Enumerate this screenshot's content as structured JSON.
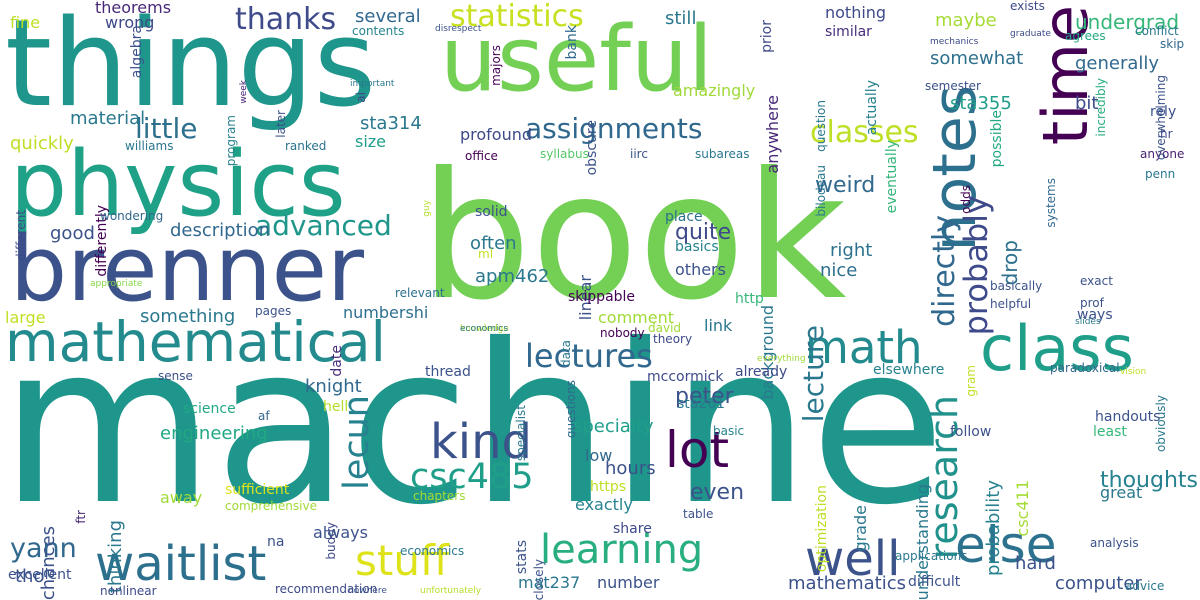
{
  "words": [
    {
      "text": "machine",
      "color": "#1f968b"
    },
    {
      "text": "book",
      "color": "#73d055"
    },
    {
      "text": "things",
      "color": "#1f968b"
    },
    {
      "text": "useful",
      "color": "#73d055"
    },
    {
      "text": "physics",
      "color": "#1fa188"
    },
    {
      "text": "brenner",
      "color": "#3b528b"
    },
    {
      "text": "mathematical",
      "color": "#238a8d"
    },
    {
      "text": "class",
      "color": "#1f9e89"
    },
    {
      "text": "time",
      "color": "#440154"
    },
    {
      "text": "notes",
      "color": "#2d708e"
    },
    {
      "text": "math",
      "color": "#238a8d"
    },
    {
      "text": "lot",
      "color": "#440154"
    },
    {
      "text": "kind",
      "color": "#3b528b"
    },
    {
      "text": "well",
      "color": "#3b528b"
    },
    {
      "text": "else",
      "color": "#2c728e"
    },
    {
      "text": "waitlist",
      "color": "#2d708e"
    },
    {
      "text": "stuff",
      "color": "#dde318"
    },
    {
      "text": "learning",
      "color": "#29af7f"
    },
    {
      "text": "csc485",
      "color": "#1f9e89"
    },
    {
      "text": "lecun",
      "color": "#26828e"
    },
    {
      "text": "research",
      "color": "#21918c"
    },
    {
      "text": "lecture",
      "color": "#2a788e"
    },
    {
      "text": "directly",
      "color": "#31688e"
    },
    {
      "text": "probably",
      "color": "#3e4a89"
    },
    {
      "text": "assignments",
      "color": "#31688e"
    },
    {
      "text": "statistics",
      "color": "#c8e020"
    },
    {
      "text": "classes",
      "color": "#bddf26"
    },
    {
      "text": "lectures",
      "color": "#31688e"
    },
    {
      "text": "advanced",
      "color": "#1f968b"
    },
    {
      "text": "thanks",
      "color": "#3e4a89"
    },
    {
      "text": "little",
      "color": "#2d708e"
    },
    {
      "text": "yann",
      "color": "#31688e"
    },
    {
      "text": "several",
      "color": "#31688e"
    },
    {
      "text": "still",
      "color": "#2a788e"
    },
    {
      "text": "nothing",
      "color": "#3e4a89"
    },
    {
      "text": "undergrad",
      "color": "#35b779"
    },
    {
      "text": "maybe",
      "color": "#a5db36"
    },
    {
      "text": "somewhat",
      "color": "#2d708e"
    },
    {
      "text": "sta355",
      "color": "#1f9e89"
    },
    {
      "text": "generally",
      "color": "#31688e"
    },
    {
      "text": "bit",
      "color": "#3e4a89"
    },
    {
      "text": "similar",
      "color": "#472d7b"
    },
    {
      "text": "exists",
      "color": "#3e4a89"
    },
    {
      "text": "agrees",
      "color": "#22a884"
    },
    {
      "text": "conflict",
      "color": "#2a788e"
    },
    {
      "text": "skip",
      "color": "#31688e"
    },
    {
      "text": "mechanics",
      "color": "#3e4a89"
    },
    {
      "text": "graduate",
      "color": "#3e4a89"
    },
    {
      "text": "rely",
      "color": "#3b528b"
    },
    {
      "text": "hr",
      "color": "#3e4a89"
    },
    {
      "text": "anyone",
      "color": "#482173"
    },
    {
      "text": "penn",
      "color": "#2a788e"
    },
    {
      "text": "semester",
      "color": "#3b528b"
    },
    {
      "text": "question",
      "color": "#2a788e"
    },
    {
      "text": "actually",
      "color": "#26828e"
    },
    {
      "text": "eventually",
      "color": "#35b779"
    },
    {
      "text": "possible",
      "color": "#22a884"
    },
    {
      "text": "bilodeau",
      "color": "#2a788e"
    },
    {
      "text": "incredibly",
      "color": "#27ad81"
    },
    {
      "text": "overwhelming",
      "color": "#3b528b"
    },
    {
      "text": "obviously",
      "color": "#2a788e"
    },
    {
      "text": "theorems",
      "color": "#482878"
    },
    {
      "text": "fine",
      "color": "#bddf26"
    },
    {
      "text": "wrong",
      "color": "#3e4a89"
    },
    {
      "text": "contents",
      "color": "#26828e"
    },
    {
      "text": "date",
      "color": "#472d7b"
    },
    {
      "text": "algebra",
      "color": "#3b528b"
    },
    {
      "text": "disrespect",
      "color": "#3b528b"
    },
    {
      "text": "majors",
      "color": "#440154"
    },
    {
      "text": "bank",
      "color": "#31688e"
    },
    {
      "text": "prior",
      "color": "#3e4a89"
    },
    {
      "text": "amazingly",
      "color": "#a0da39"
    },
    {
      "text": "obscure",
      "color": "#3b528b"
    },
    {
      "text": "anywhere",
      "color": "#482878"
    },
    {
      "text": "program",
      "color": "#26828e"
    },
    {
      "text": "week",
      "color": "#482475"
    },
    {
      "text": "later",
      "color": "#3b528b"
    },
    {
      "text": "important",
      "color": "#2a788e"
    },
    {
      "text": "ai",
      "color": "#404688"
    },
    {
      "text": "material",
      "color": "#2a788e"
    },
    {
      "text": "quickly",
      "color": "#bddf26"
    },
    {
      "text": "sta314",
      "color": "#2a788e"
    },
    {
      "text": "size",
      "color": "#1f9e89"
    },
    {
      "text": "ranked",
      "color": "#2c728e"
    },
    {
      "text": "williams",
      "color": "#2a788e"
    },
    {
      "text": "differently",
      "color": "#440154"
    },
    {
      "text": "profound",
      "color": "#3e4a89"
    },
    {
      "text": "office",
      "color": "#440154"
    },
    {
      "text": "syllabus",
      "color": "#56c667"
    },
    {
      "text": "iirc",
      "color": "#3b528b"
    },
    {
      "text": "subareas",
      "color": "#2a788e"
    },
    {
      "text": "linear",
      "color": "#3b528b"
    },
    {
      "text": "background",
      "color": "#2a788e"
    },
    {
      "text": "description",
      "color": "#31688e"
    },
    {
      "text": "good",
      "color": "#3b528b"
    },
    {
      "text": "often",
      "color": "#2a788e"
    },
    {
      "text": "solid",
      "color": "#3b528b"
    },
    {
      "text": "quite",
      "color": "#3e4a89"
    },
    {
      "text": "place",
      "color": "#2c728e"
    },
    {
      "text": "basics",
      "color": "#26828e"
    },
    {
      "text": "apm462",
      "color": "#2a788e"
    },
    {
      "text": "ml",
      "color": "#c2df23"
    },
    {
      "text": "others",
      "color": "#3b528b"
    },
    {
      "text": "weird",
      "color": "#31688e"
    },
    {
      "text": "right",
      "color": "#2c728e"
    },
    {
      "text": "nice",
      "color": "#2d708e"
    },
    {
      "text": "drop",
      "color": "#2d708e"
    },
    {
      "text": "systems",
      "color": "#31688e"
    },
    {
      "text": "basically",
      "color": "#3b528b"
    },
    {
      "text": "odds",
      "color": "#440154"
    },
    {
      "text": "different",
      "color": "#3e4a89"
    },
    {
      "text": "wondering",
      "color": "#31688e"
    },
    {
      "text": "guy",
      "color": "#b5de2b"
    },
    {
      "text": "appropriate",
      "color": "#86d549"
    },
    {
      "text": "large",
      "color": "#c2df23"
    },
    {
      "text": "something",
      "color": "#2a788e"
    },
    {
      "text": "relevant",
      "color": "#2d708e"
    },
    {
      "text": "pages",
      "color": "#3b528b"
    },
    {
      "text": "numbershi",
      "color": "#2d708e"
    },
    {
      "text": "knowledge",
      "color": "#b5de2b"
    },
    {
      "text": "economics",
      "color": "#2a788e"
    },
    {
      "text": "data",
      "color": "#2a788e"
    },
    {
      "text": "specialist",
      "color": "#2a788e"
    },
    {
      "text": "questions",
      "color": "#31688e"
    },
    {
      "text": "skippable",
      "color": "#440154"
    },
    {
      "text": "nobody",
      "color": "#440154"
    },
    {
      "text": "theory",
      "color": "#3e4a89"
    },
    {
      "text": "david",
      "color": "#a0da39"
    },
    {
      "text": "comment",
      "color": "#a0da39"
    },
    {
      "text": "link",
      "color": "#2a788e"
    },
    {
      "text": "http",
      "color": "#35b779"
    },
    {
      "text": "helpful",
      "color": "#3b528b"
    },
    {
      "text": "exact",
      "color": "#3b528b"
    },
    {
      "text": "prof",
      "color": "#3b528b"
    },
    {
      "text": "ways",
      "color": "#3b528b"
    },
    {
      "text": "slides",
      "color": "#2a788e"
    },
    {
      "text": "vision",
      "color": "#bddf26"
    },
    {
      "text": "paradoxical",
      "color": "#31688e"
    },
    {
      "text": "sense",
      "color": "#3b528b"
    },
    {
      "text": "knight",
      "color": "#31688e"
    },
    {
      "text": "thread",
      "color": "#3b528b"
    },
    {
      "text": "mccormick",
      "color": "#3e4a89"
    },
    {
      "text": "already",
      "color": "#3e4a89"
    },
    {
      "text": "elsewhere",
      "color": "#26828e"
    },
    {
      "text": "everything",
      "color": "#a0da39"
    },
    {
      "text": "gram",
      "color": "#c2df23"
    },
    {
      "text": "grade",
      "color": "#2a788e"
    },
    {
      "text": "optimization",
      "color": "#bddf26"
    },
    {
      "text": "probability",
      "color": "#26828e"
    },
    {
      "text": "csc411",
      "color": "#a5db36"
    },
    {
      "text": "understanding",
      "color": "#2a788e"
    },
    {
      "text": "chances",
      "color": "#3b528b"
    },
    {
      "text": "thinking",
      "color": "#2a788e"
    },
    {
      "text": "engineering",
      "color": "#22a884"
    },
    {
      "text": "science",
      "color": "#22a884"
    },
    {
      "text": "af",
      "color": "#31688e"
    },
    {
      "text": "hell",
      "color": "#b5de2b"
    },
    {
      "text": "buddy",
      "color": "#3e4a89"
    },
    {
      "text": "comprehensive",
      "color": "#a0da39"
    },
    {
      "text": "ftr",
      "color": "#482878"
    },
    {
      "text": "excellent",
      "color": "#3b528b"
    },
    {
      "text": "nonlinear",
      "color": "#3e4a89"
    },
    {
      "text": "recommendation",
      "color": "#3e4a89"
    },
    {
      "text": "nowhere",
      "color": "#3b528b"
    },
    {
      "text": "unfortunately",
      "color": "#b5de2b"
    },
    {
      "text": "economics",
      "color": "#2a788e"
    },
    {
      "text": "stats",
      "color": "#3b528b"
    },
    {
      "text": "closely",
      "color": "#3b528b"
    },
    {
      "text": "specialty",
      "color": "#1f9e89"
    },
    {
      "text": "low",
      "color": "#31688e"
    },
    {
      "text": "hours",
      "color": "#3b528b"
    },
    {
      "text": "even",
      "color": "#3b528b"
    },
    {
      "text": "https",
      "color": "#bddf26"
    },
    {
      "text": "exactly",
      "color": "#26828e"
    },
    {
      "text": "share",
      "color": "#3e4a89"
    },
    {
      "text": "table",
      "color": "#3b528b"
    },
    {
      "text": "peter",
      "color": "#3b528b"
    },
    {
      "text": "sta261",
      "color": "#2a788e"
    },
    {
      "text": "basic",
      "color": "#26828e"
    },
    {
      "text": "chapters",
      "color": "#a5db36"
    },
    {
      "text": "sufficient",
      "color": "#dde318"
    },
    {
      "text": "away",
      "color": "#a0da39"
    },
    {
      "text": "na",
      "color": "#3b528b"
    },
    {
      "text": "always",
      "color": "#3b528b"
    },
    {
      "text": "mat237",
      "color": "#2a788e"
    },
    {
      "text": "number",
      "color": "#3b528b"
    },
    {
      "text": "mathematics",
      "color": "#3b528b"
    },
    {
      "text": "difficult",
      "color": "#3b528b"
    },
    {
      "text": "applications",
      "color": "#2a788e"
    },
    {
      "text": "hard",
      "color": "#3b528b"
    },
    {
      "text": "computer",
      "color": "#3b528b"
    },
    {
      "text": "advice",
      "color": "#2a788e"
    },
    {
      "text": "analysis",
      "color": "#3b528b"
    },
    {
      "text": "thoughts",
      "color": "#26828e"
    },
    {
      "text": "great",
      "color": "#2a788e"
    },
    {
      "text": "handouts",
      "color": "#3b528b"
    },
    {
      "text": "least",
      "color": "#35b779"
    },
    {
      "text": "follow",
      "color": "#3b528b"
    },
    {
      "text": "tho",
      "color": "#3b528b"
    },
    {
      "text": "opinion",
      "color": "#3b528b"
    }
  ]
}
